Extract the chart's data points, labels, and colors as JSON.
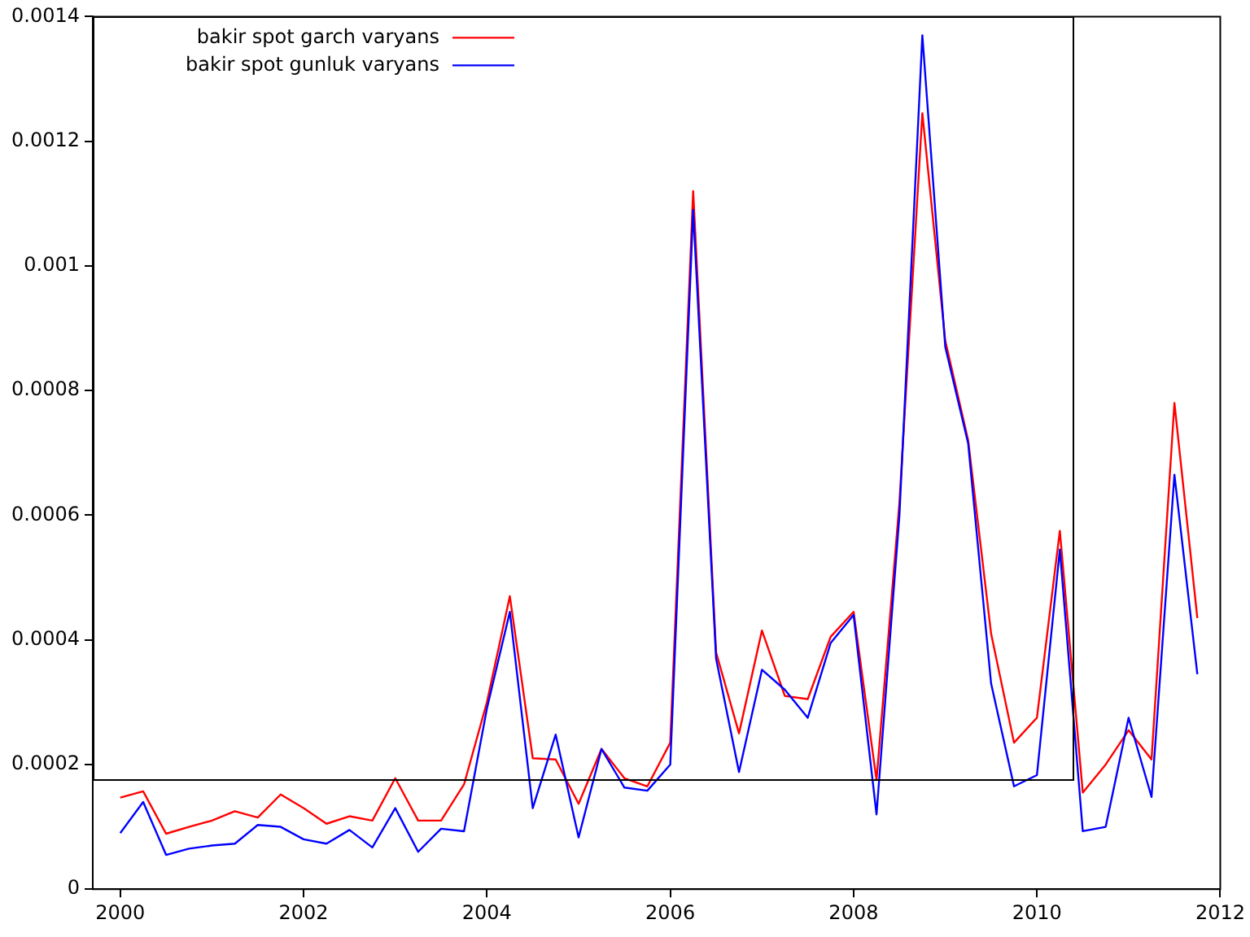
{
  "chart_data": {
    "type": "line",
    "x": [
      2000,
      2000.25,
      2000.5,
      2000.75,
      2001,
      2001.25,
      2001.5,
      2001.75,
      2002,
      2002.25,
      2002.5,
      2002.75,
      2003,
      2003.25,
      2003.5,
      2003.75,
      2004,
      2004.25,
      2004.5,
      2004.75,
      2005,
      2005.25,
      2005.5,
      2005.75,
      2006,
      2006.25,
      2006.5,
      2006.75,
      2007,
      2007.25,
      2007.5,
      2007.75,
      2008,
      2008.25,
      2008.5,
      2008.75,
      2009,
      2009.25,
      2009.5,
      2009.75,
      2010,
      2010.25,
      2010.5,
      2010.75,
      2011,
      2011.25,
      2011.5,
      2011.75
    ],
    "series": [
      {
        "name": "bakir spot garch varyans",
        "color": "#ff0000",
        "values": [
          0.000147,
          0.000157,
          8.9e-05,
          0.0001,
          0.00011,
          0.000125,
          0.000115,
          0.000152,
          0.00013,
          0.000105,
          0.000117,
          0.00011,
          0.000178,
          0.00011,
          0.00011,
          0.000168,
          0.0003,
          0.00047,
          0.00021,
          0.000208,
          0.000137,
          0.000225,
          0.000178,
          0.000165,
          0.000235,
          0.00112,
          0.00038,
          0.00025,
          0.000415,
          0.00031,
          0.000305,
          0.000405,
          0.000445,
          0.000175,
          0.00062,
          0.001245,
          0.00088,
          0.00072,
          0.00041,
          0.000235,
          0.000275,
          0.000575,
          0.000155,
          0.0002,
          0.000255,
          0.000208,
          0.00078,
          0.000435
        ]
      },
      {
        "name": "bakir spot gunluk varyans",
        "color": "#0000ff",
        "values": [
          9e-05,
          0.00014,
          5.5e-05,
          6.5e-05,
          7e-05,
          7.3e-05,
          0.000103,
          0.0001,
          8e-05,
          7.3e-05,
          9.5e-05,
          6.7e-05,
          0.00013,
          6e-05,
          9.7e-05,
          9.3e-05,
          0.00029,
          0.000445,
          0.00013,
          0.000248,
          8.3e-05,
          0.000225,
          0.000163,
          0.000158,
          0.0002,
          0.00109,
          0.00037,
          0.000188,
          0.000352,
          0.00032,
          0.000275,
          0.000395,
          0.00044,
          0.00012,
          0.0006,
          0.00137,
          0.00087,
          0.000715,
          0.00033,
          0.000165,
          0.000183,
          0.000545,
          9.3e-05,
          0.0001,
          0.000275,
          0.000148,
          0.000665,
          0.000345
        ]
      }
    ],
    "xlim": [
      1999.7,
      2012
    ],
    "xticks": [
      2000,
      2002,
      2004,
      2006,
      2008,
      2010,
      2012
    ],
    "ylim": [
      0,
      0.0014
    ],
    "yticks": [
      0,
      0.0002,
      0.0004,
      0.0006,
      0.0008,
      0.001,
      0.0012,
      0.0014
    ],
    "grid": false,
    "legend": "top left",
    "marker": "none",
    "line_style": "solid"
  }
}
